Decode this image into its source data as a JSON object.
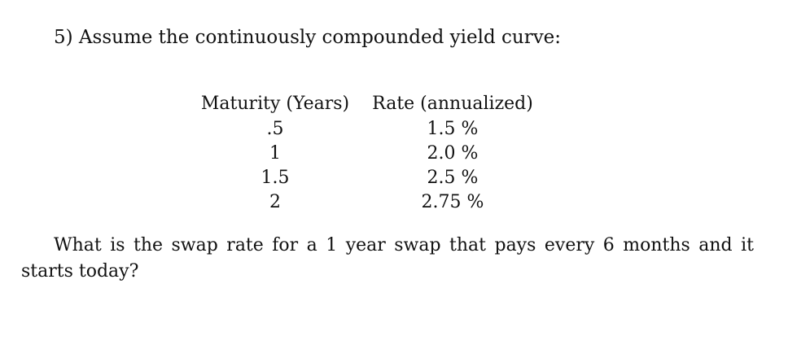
{
  "problem": {
    "title": "5) Assume the continuously compounded yield curve:"
  },
  "table": {
    "headers": {
      "maturity": "Maturity (Years)",
      "rate": "Rate (annualized)"
    },
    "rows": [
      {
        "maturity": ".5",
        "rate": "1.5 %"
      },
      {
        "maturity": "1",
        "rate": "2.0 %"
      },
      {
        "maturity": "1.5",
        "rate": "2.5 %"
      },
      {
        "maturity": "2",
        "rate": "2.75 %"
      }
    ]
  },
  "question": "What is the swap rate for a 1 year swap that pays every 6 months and it starts today?"
}
